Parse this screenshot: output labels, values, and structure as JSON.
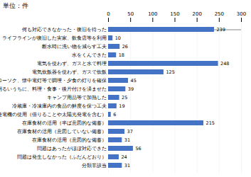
{
  "chart_data": {
    "type": "bar",
    "orientation": "horizontal",
    "title": "単位：件",
    "categories": [
      "何も対応できなかった・復旧を待った",
      "ライフラインが復旧した実家、飲食店等を利用",
      "断水時に洗い物を減らす工夫",
      "水をくんできた",
      "電気を使わず、ガスと水で料理",
      "電気炊飯器を使わず、ガスで炊飯",
      "ローソク、懐中電灯等で調理・夕食の灯りを確保",
      "明るいうちに、料理・食事・後片付けを済ませた",
      "キャンプ用品等で加熱した",
      "冷蔵庫・冷凍庫内の食品の鮮度を保つ工夫",
      "発電機の使用（借りることや太陽光発電を含む）",
      "在庫食材の活用（半ば意図的な備蓄）",
      "在庫食材の活用（意図していない備蓄）",
      "在庫食材の活用（意図的な備蓄）",
      "問題はあったがほぼ対応できた",
      "問題は発生しなかった（ふだんどおり）",
      "分類非該当"
    ],
    "values": [
      239,
      10,
      26,
      18,
      248,
      125,
      45,
      39,
      25,
      19,
      6,
      215,
      37,
      31,
      56,
      24,
      31
    ],
    "color": "#4472c4",
    "xlim": [
      0,
      300
    ],
    "xticks": [
      0,
      50,
      100,
      150,
      200,
      250,
      300
    ],
    "grid": true,
    "data_labels": true
  }
}
